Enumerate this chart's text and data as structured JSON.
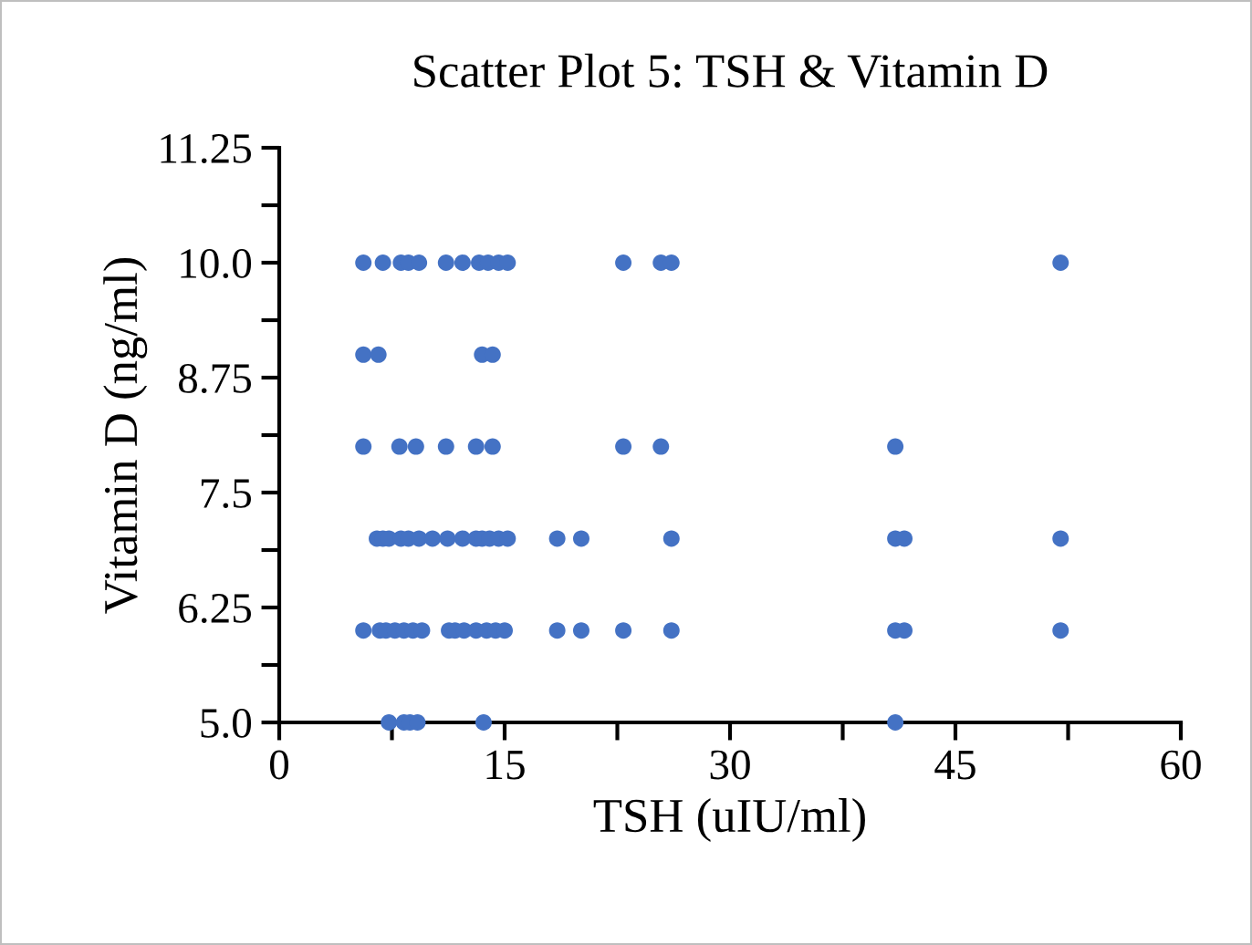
{
  "chart_data": {
    "type": "scatter",
    "title": "Scatter Plot 5: TSH & Vitamin D",
    "xlabel": "TSH (uIU/ml)",
    "ylabel": "Vitamin D (ng/ml)",
    "series": [
      {
        "color": "#4472c4",
        "x": [
          5.6,
          6.9,
          8.1,
          8.6,
          9.3,
          11.1,
          12.2,
          13.3,
          13.9,
          14.6,
          15.2,
          22.9,
          25.4,
          26.1,
          52.0,
          5.6,
          6.6,
          13.5,
          14.2,
          5.6,
          8.0,
          9.1,
          11.1,
          13.1,
          14.2,
          22.9,
          25.4,
          41.0,
          6.5,
          6.9,
          7.3,
          8.1,
          8.6,
          9.3,
          10.2,
          11.2,
          12.2,
          13.1,
          13.5,
          14.0,
          14.6,
          15.2,
          18.5,
          20.1,
          26.1,
          41.0,
          41.6,
          52.0,
          5.6,
          6.7,
          7.1,
          7.7,
          8.3,
          8.9,
          9.5,
          11.3,
          11.7,
          12.3,
          13.1,
          13.8,
          14.4,
          15.0,
          18.5,
          20.1,
          22.9,
          26.1,
          41.0,
          41.6,
          52.0,
          7.3,
          8.3,
          8.7,
          9.2,
          13.6,
          41.0
        ],
        "values": [
          10,
          10,
          10,
          10,
          10,
          10,
          10,
          10,
          10,
          10,
          10,
          10,
          10,
          10,
          10,
          9,
          9,
          9,
          9,
          8,
          8,
          8,
          8,
          8,
          8,
          8,
          8,
          8,
          7,
          7,
          7,
          7,
          7,
          7,
          7,
          7,
          7,
          7,
          7,
          7,
          7,
          7,
          7,
          7,
          7,
          7,
          7,
          7,
          6,
          6,
          6,
          6,
          6,
          6,
          6,
          6,
          6,
          6,
          6,
          6,
          6,
          6,
          6,
          6,
          6,
          6,
          6,
          6,
          6,
          5,
          5,
          5,
          5,
          5,
          5
        ]
      }
    ],
    "marker": "circle",
    "grid": false,
    "xlim": [
      0,
      60
    ],
    "xticks": [
      0,
      {
        "value": 7.5,
        "label": null
      },
      15,
      {
        "value": 22.5,
        "label": null
      },
      30,
      {
        "value": 37.5,
        "label": null
      },
      45,
      {
        "value": 52.5,
        "label": null
      },
      60
    ],
    "ylim": [
      5.0,
      11.25
    ],
    "yticks": [
      {
        "value": 5.0,
        "label": "5.0"
      },
      {
        "value": 5.625,
        "label": null
      },
      6.25,
      {
        "value": 6.875,
        "label": null
      },
      7.5,
      {
        "value": 8.125,
        "label": null
      },
      8.75,
      {
        "value": 9.375,
        "label": null
      },
      {
        "value": 10.0,
        "label": "10.0"
      },
      {
        "value": 10.625,
        "label": null
      },
      11.25
    ]
  }
}
